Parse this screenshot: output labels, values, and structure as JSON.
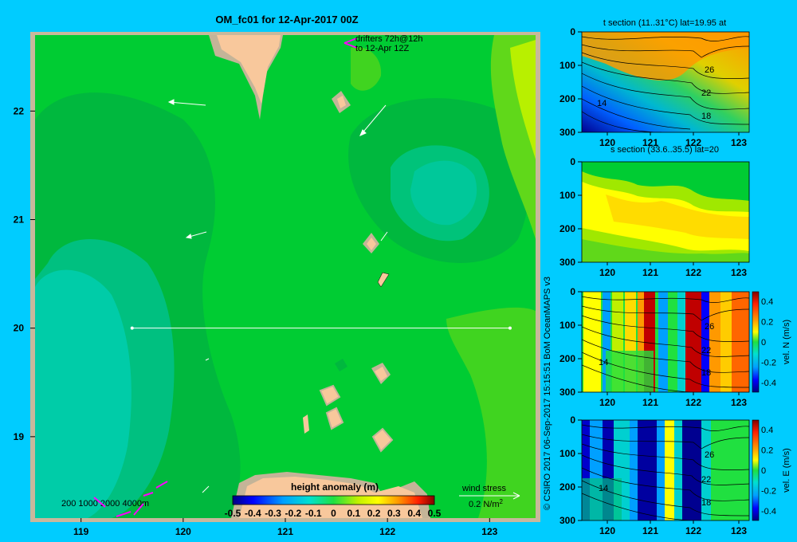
{
  "map": {
    "title": "OM_fc01 for 12-Apr-2017 00Z",
    "lon_ticks": [
      "119",
      "120",
      "121",
      "122",
      "123"
    ],
    "lat_ticks": [
      "22",
      "21",
      "20",
      "19"
    ],
    "lon_range": [
      118.55,
      123.45
    ],
    "lat_range": [
      18.25,
      22.7
    ],
    "drifters_line1": "drifters 72h@12h",
    "drifters_line2": "to 12-Apr 12Z",
    "depth_legend": "200  1000  2000  4000m",
    "colorbar_title": "height anomaly (m)",
    "colorbar_ticks": [
      "-0.5",
      "-0.4",
      "-0.3",
      "-0.2",
      "-0.1",
      "0",
      "0.1",
      "0.2",
      "0.3",
      "0.4",
      "0.5"
    ],
    "wind_label": "wind stress",
    "wind_value": "0.2 N/m",
    "wind_sup": "2",
    "section_line": {
      "lat": 20.0,
      "lon_start": 119.5,
      "lon_end": 123.2
    },
    "colors": {
      "background": "#00ccff",
      "land": "#f8c89c",
      "shelf": "#c4b498",
      "frame": "#c8b89c",
      "drifter": "#ff00ff"
    }
  },
  "credit": "© CSIRO 2017   06-Sep-2017 15:15:51 BoM OceanMAPS v3",
  "panels": [
    {
      "id": "t",
      "title": "t section (11..31°C) lat=19.95 at",
      "y_ticks": [
        "0",
        "100",
        "200",
        "300"
      ],
      "x_ticks": [
        "120",
        "121",
        "122",
        "123"
      ],
      "contour_labels": [
        "26",
        "22",
        "18",
        "14"
      ],
      "colorbar": false
    },
    {
      "id": "s",
      "title": "s section (33.6..35.5) lat=20",
      "y_ticks": [
        "0",
        "100",
        "200",
        "300"
      ],
      "x_ticks": [
        "120",
        "121",
        "122",
        "123"
      ],
      "contour_labels": [],
      "colorbar": false
    },
    {
      "id": "vn",
      "title": "",
      "y_ticks": [
        "0",
        "100",
        "200",
        "300"
      ],
      "x_ticks": [
        "120",
        "121",
        "122",
        "123"
      ],
      "contour_labels": [
        "26",
        "22",
        "18",
        "14"
      ],
      "colorbar": true,
      "cbar_label": "vel. N (m/s)",
      "cbar_ticks": [
        "0.4",
        "0.2",
        "0",
        "-0.2",
        "-0.4"
      ]
    },
    {
      "id": "ve",
      "title": "",
      "y_ticks": [
        "0",
        "100",
        "200",
        "300"
      ],
      "x_ticks": [
        "120",
        "121",
        "122",
        "123"
      ],
      "contour_labels": [
        "26",
        "22",
        "18",
        "14"
      ],
      "colorbar": true,
      "cbar_label": "vel. E (m/s)",
      "cbar_ticks": [
        "0.4",
        "0.2",
        "0",
        "-0.2",
        "-0.4"
      ]
    }
  ],
  "chart_data": [
    {
      "type": "heatmap",
      "title": "OM_fc01 for 12-Apr-2017 00Z",
      "quantity": "height anomaly (m)",
      "xlim": [
        118.55,
        123.45
      ],
      "ylim": [
        18.25,
        22.7
      ],
      "vlim": [
        -0.5,
        0.5
      ],
      "x_ticks": [
        119,
        120,
        121,
        122,
        123
      ],
      "y_ticks": [
        19,
        20,
        21,
        22
      ]
    },
    {
      "type": "heatmap",
      "title": "t section (11..31°C) lat=19.95 at",
      "xlim": [
        119.6,
        123.3
      ],
      "ylim": [
        300,
        0
      ],
      "contour_labels": [
        26,
        22,
        18,
        14
      ]
    },
    {
      "type": "heatmap",
      "title": "s section (33.6..35.5) lat=20",
      "xlim": [
        119.6,
        123.3
      ],
      "ylim": [
        300,
        0
      ]
    },
    {
      "type": "heatmap",
      "title": "",
      "quantity": "vel. N (m/s)",
      "xlim": [
        119.6,
        123.3
      ],
      "ylim": [
        300,
        0
      ],
      "vlim": [
        -0.4,
        0.4
      ],
      "contour_labels": [
        26,
        22,
        18,
        14
      ]
    },
    {
      "type": "heatmap",
      "title": "",
      "quantity": "vel. E (m/s)",
      "xlim": [
        119.6,
        123.3
      ],
      "ylim": [
        300,
        0
      ],
      "vlim": [
        -0.4,
        0.4
      ],
      "contour_labels": [
        26,
        22,
        18,
        14
      ]
    }
  ]
}
